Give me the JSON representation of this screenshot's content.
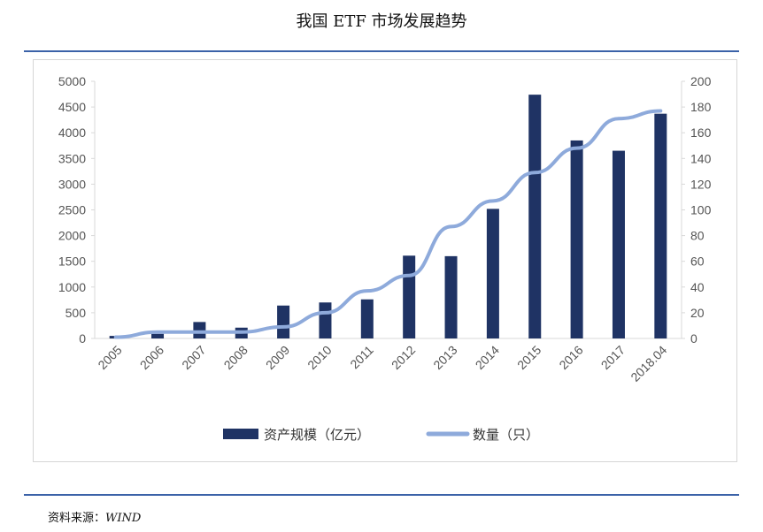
{
  "header": {
    "title": "我国 ETF 市场发展趋势"
  },
  "footer": {
    "source_label": "资料来源：",
    "source_value": "WIND"
  },
  "colors": {
    "bar": "#1f3364",
    "line": "#8eaadb",
    "axis": "#d9d9d9",
    "rule": "#3b62a8"
  },
  "chart_data": {
    "type": "bar",
    "title": "",
    "categories": [
      "2005",
      "2006",
      "2007",
      "2008",
      "2009",
      "2010",
      "2011",
      "2012",
      "2013",
      "2014",
      "2015",
      "2016",
      "2017",
      "2018.04"
    ],
    "series": [
      {
        "name": "资产规模（亿元）",
        "type": "bar",
        "axis": "left",
        "values": [
          50,
          90,
          320,
          210,
          640,
          700,
          760,
          1610,
          1600,
          2520,
          4740,
          3850,
          3650,
          4370
        ]
      },
      {
        "name": "数量（只）",
        "type": "line",
        "axis": "right",
        "values": [
          1,
          5,
          5,
          5,
          9,
          20,
          37,
          49,
          87,
          107,
          129,
          148,
          171,
          177
        ]
      }
    ],
    "y_left": {
      "ylim": [
        0,
        5000
      ],
      "ticks": [
        "0",
        "500",
        "1000",
        "1500",
        "2000",
        "2500",
        "3000",
        "3500",
        "4000",
        "4500",
        "5000"
      ]
    },
    "y_right": {
      "ylim": [
        0,
        200
      ],
      "ticks": [
        "0",
        "20",
        "40",
        "60",
        "80",
        "100",
        "120",
        "140",
        "160",
        "180",
        "200"
      ]
    },
    "legend": {
      "position": "bottom"
    },
    "grid": false
  }
}
